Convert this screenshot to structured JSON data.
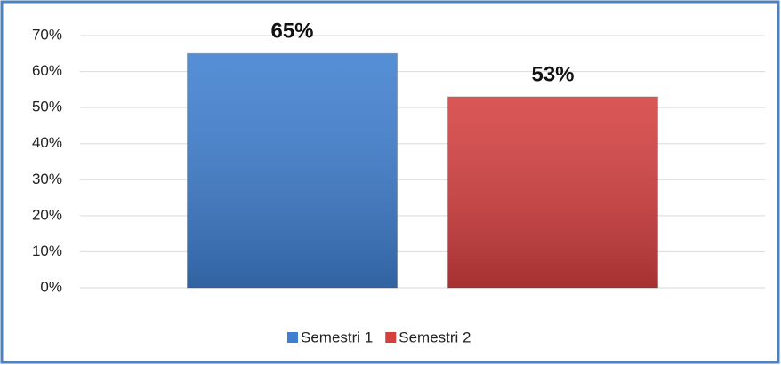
{
  "chart_data": {
    "type": "bar",
    "categories": [
      null
    ],
    "series": [
      {
        "name": "Semestri 1",
        "color": "#3f7fd0",
        "values": [
          65
        ],
        "value_labels": [
          "65%"
        ]
      },
      {
        "name": "Semestri 2",
        "color": "#d43f3f",
        "values": [
          53
        ],
        "value_labels": [
          "53%"
        ]
      }
    ],
    "ylim": [
      0,
      70
    ],
    "yticks": [
      {
        "value": 0,
        "label": "0%"
      },
      {
        "value": 10,
        "label": "10%"
      },
      {
        "value": 20,
        "label": "20%"
      },
      {
        "value": 30,
        "label": "30%"
      },
      {
        "value": 40,
        "label": "40%"
      },
      {
        "value": 50,
        "label": "50%"
      },
      {
        "value": 60,
        "label": "60%"
      },
      {
        "value": 70,
        "label": "70%"
      }
    ],
    "grid": true,
    "legend": "bottom"
  }
}
